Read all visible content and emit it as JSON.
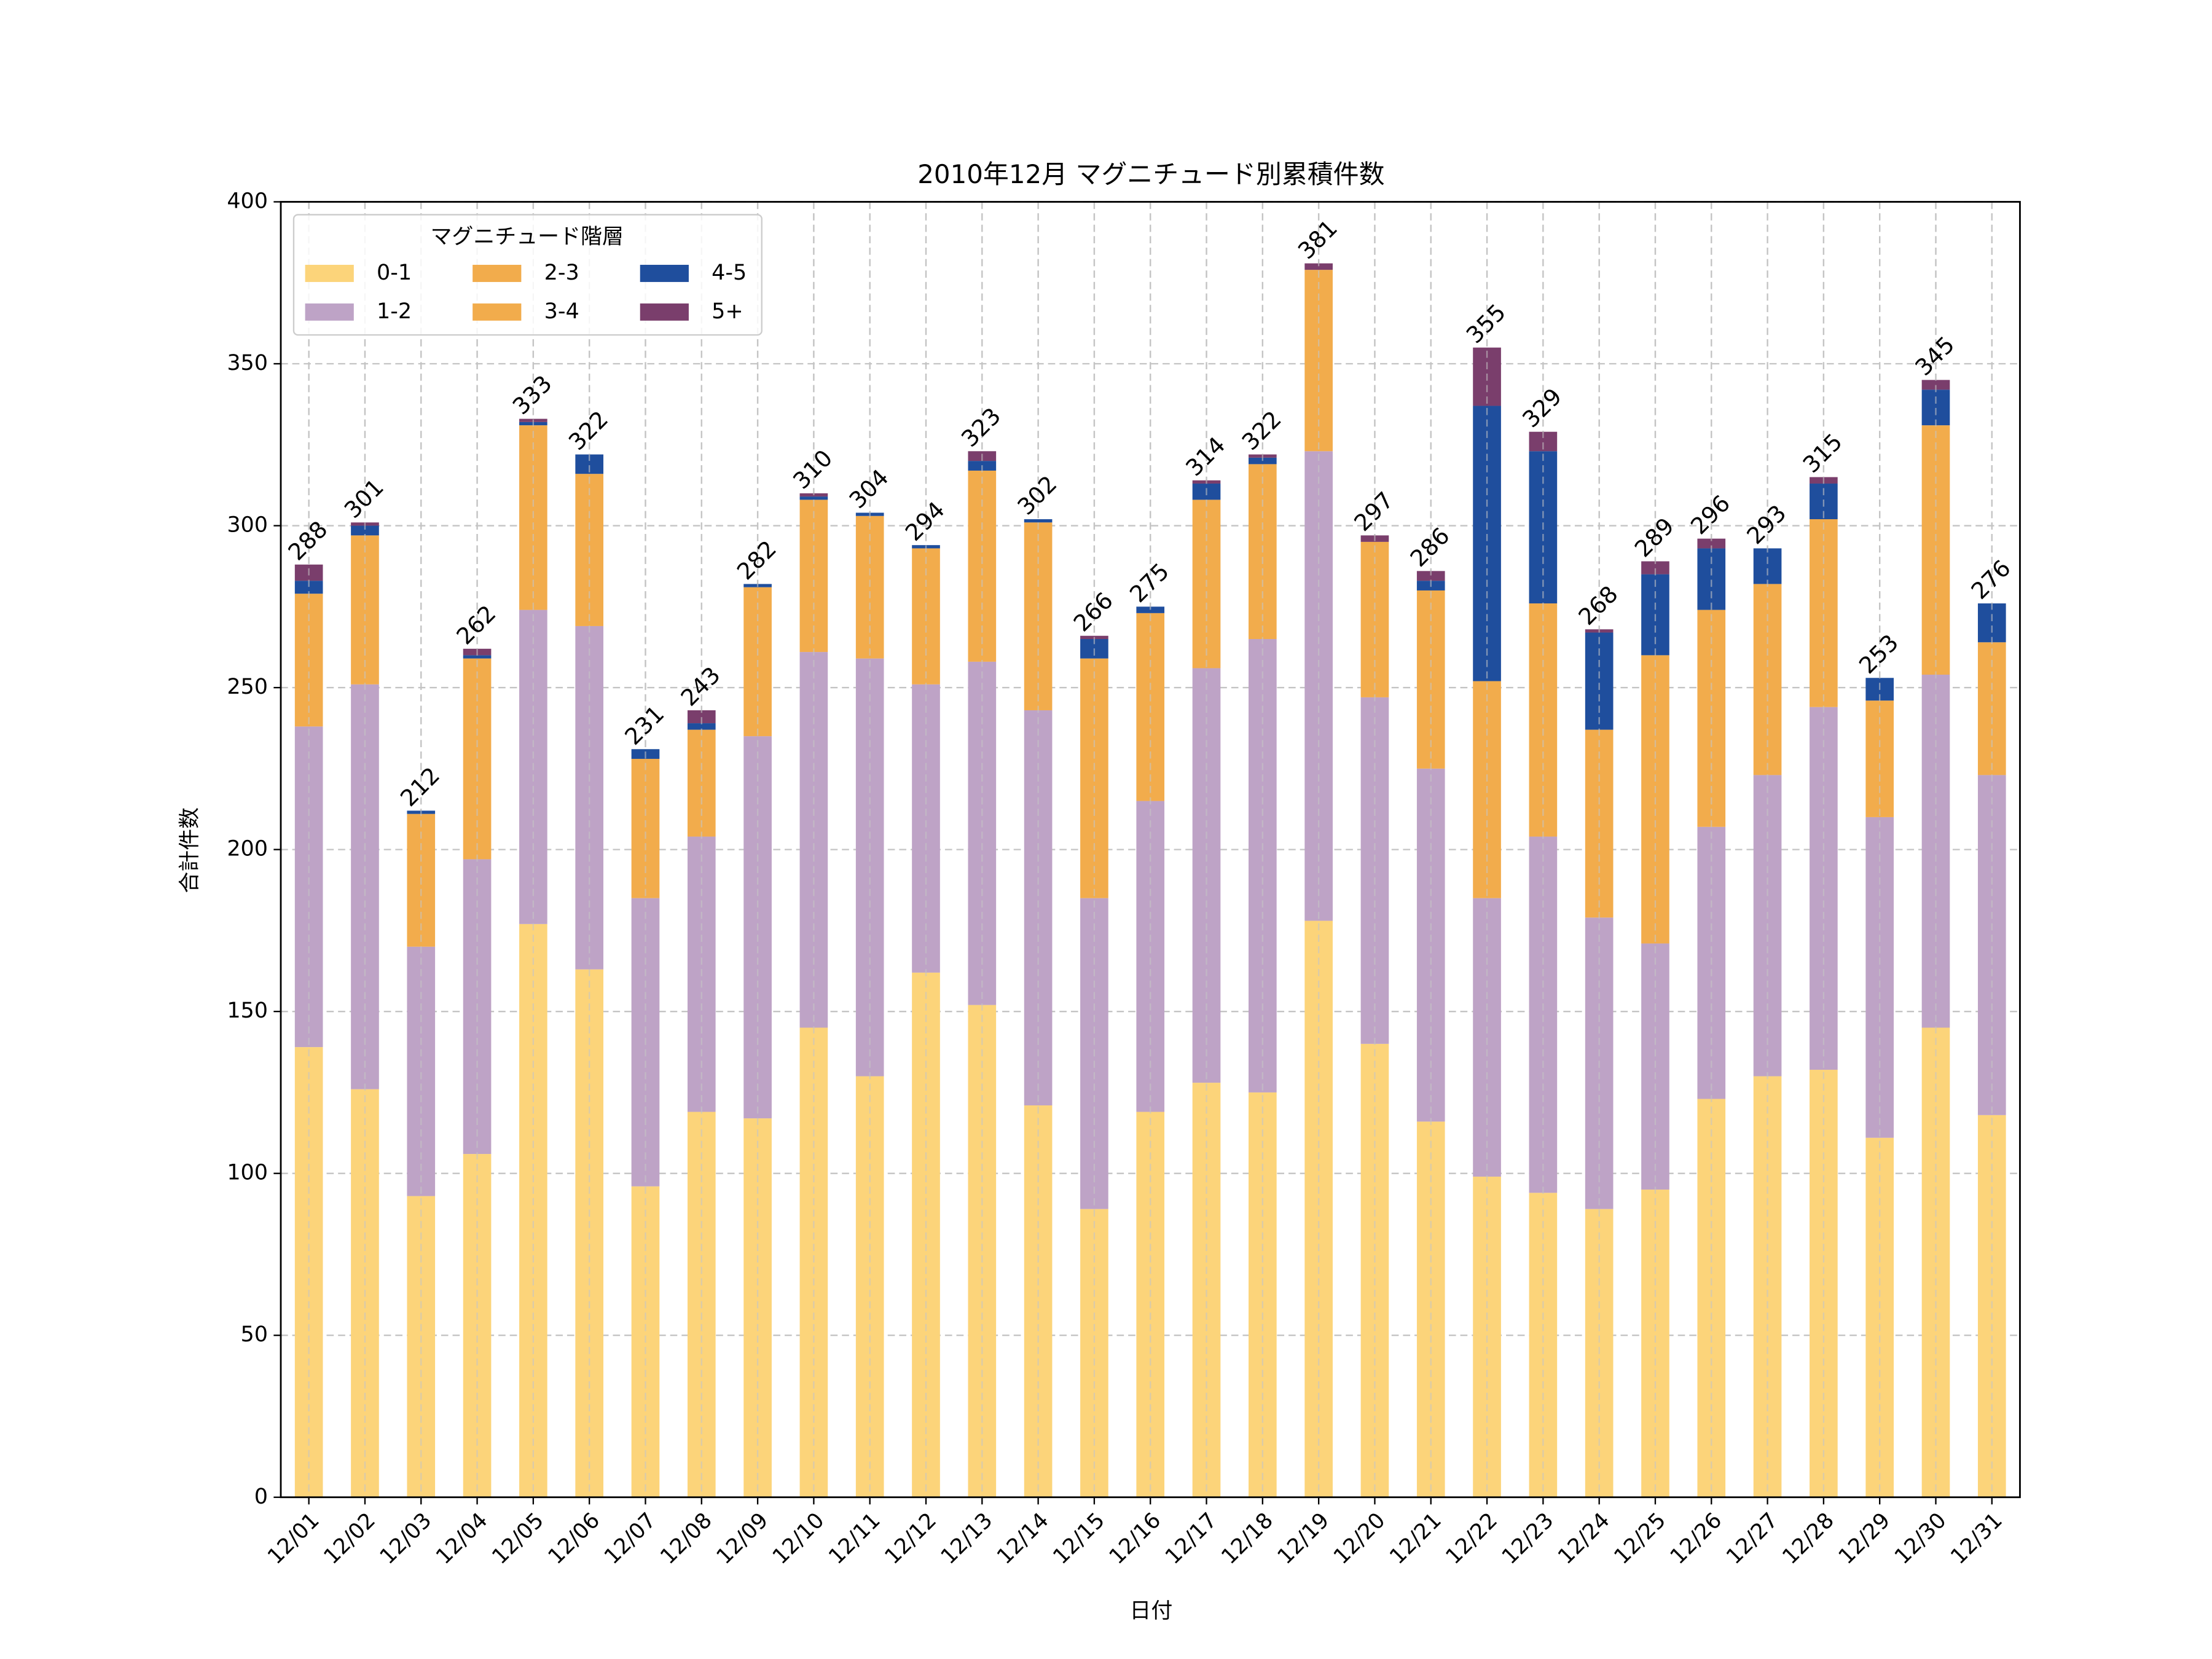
{
  "chart_data": {
    "type": "stacked_bar",
    "title": "2010年12月 マグニチュード別累積件数",
    "x_label": "日付",
    "y_label": "合計件数",
    "legend_title": "マグニチュード階層",
    "legend_position": "upper left",
    "grid": true,
    "categories": [
      "12/01",
      "12/02",
      "12/03",
      "12/04",
      "12/05",
      "12/06",
      "12/07",
      "12/08",
      "12/09",
      "12/10",
      "12/11",
      "12/12",
      "12/13",
      "12/14",
      "12/15",
      "12/16",
      "12/17",
      "12/18",
      "12/19",
      "12/20",
      "12/21",
      "12/22",
      "12/23",
      "12/24",
      "12/25",
      "12/26",
      "12/27",
      "12/28",
      "12/29",
      "12/30",
      "12/31"
    ],
    "series": [
      {
        "name": "0-1",
        "color": "#fcd47a",
        "values": [
          139,
          126,
          93,
          106,
          177,
          163,
          96,
          119,
          117,
          145,
          130,
          162,
          152,
          121,
          89,
          119,
          128,
          125,
          178,
          140,
          116,
          99,
          94,
          89,
          95,
          123,
          130,
          132,
          111,
          145,
          118
        ]
      },
      {
        "name": "1-2",
        "color": "#bea3c6",
        "values": [
          99,
          125,
          77,
          91,
          97,
          106,
          89,
          85,
          118,
          116,
          129,
          89,
          106,
          122,
          96,
          96,
          128,
          140,
          145,
          107,
          109,
          86,
          110,
          90,
          76,
          84,
          93,
          112,
          99,
          109,
          105
        ]
      },
      {
        "name": "2-3",
        "color": "#f2ac4c",
        "values": [
          41,
          46,
          41,
          62,
          57,
          47,
          43,
          33,
          46,
          47,
          44,
          42,
          59,
          58,
          74,
          58,
          52,
          54,
          56,
          48,
          55,
          67,
          72,
          58,
          89,
          67,
          59,
          58,
          36,
          77,
          41
        ]
      },
      {
        "name": "3-4",
        "color": "#f2ac4c",
        "values": [
          0,
          0,
          0,
          0,
          0,
          0,
          0,
          0,
          0,
          0,
          0,
          0,
          0,
          0,
          0,
          0,
          0,
          0,
          0,
          0,
          0,
          0,
          0,
          0,
          0,
          0,
          0,
          0,
          0,
          0,
          0
        ]
      },
      {
        "name": "4-5",
        "color": "#1f4e9d",
        "values": [
          4,
          3,
          1,
          1,
          1,
          6,
          3,
          2,
          1,
          1,
          1,
          1,
          3,
          1,
          6,
          2,
          5,
          2,
          0,
          0,
          3,
          85,
          47,
          30,
          25,
          19,
          11,
          11,
          7,
          11,
          12
        ]
      },
      {
        "name": "5+",
        "color": "#7a3e6c",
        "values": [
          5,
          1,
          0,
          2,
          1,
          0,
          0,
          4,
          0,
          1,
          0,
          0,
          3,
          0,
          1,
          0,
          1,
          1,
          2,
          2,
          3,
          18,
          6,
          1,
          4,
          3,
          0,
          2,
          0,
          3,
          0
        ]
      }
    ],
    "totals": [
      288,
      301,
      212,
      262,
      333,
      322,
      231,
      243,
      282,
      310,
      304,
      294,
      323,
      302,
      266,
      275,
      314,
      322,
      381,
      297,
      286,
      355,
      329,
      268,
      289,
      296,
      293,
      315,
      253,
      345,
      276
    ],
    "ylim": [
      0,
      400
    ],
    "yticks": [
      0,
      50,
      100,
      150,
      200,
      250,
      300,
      350,
      400
    ]
  }
}
